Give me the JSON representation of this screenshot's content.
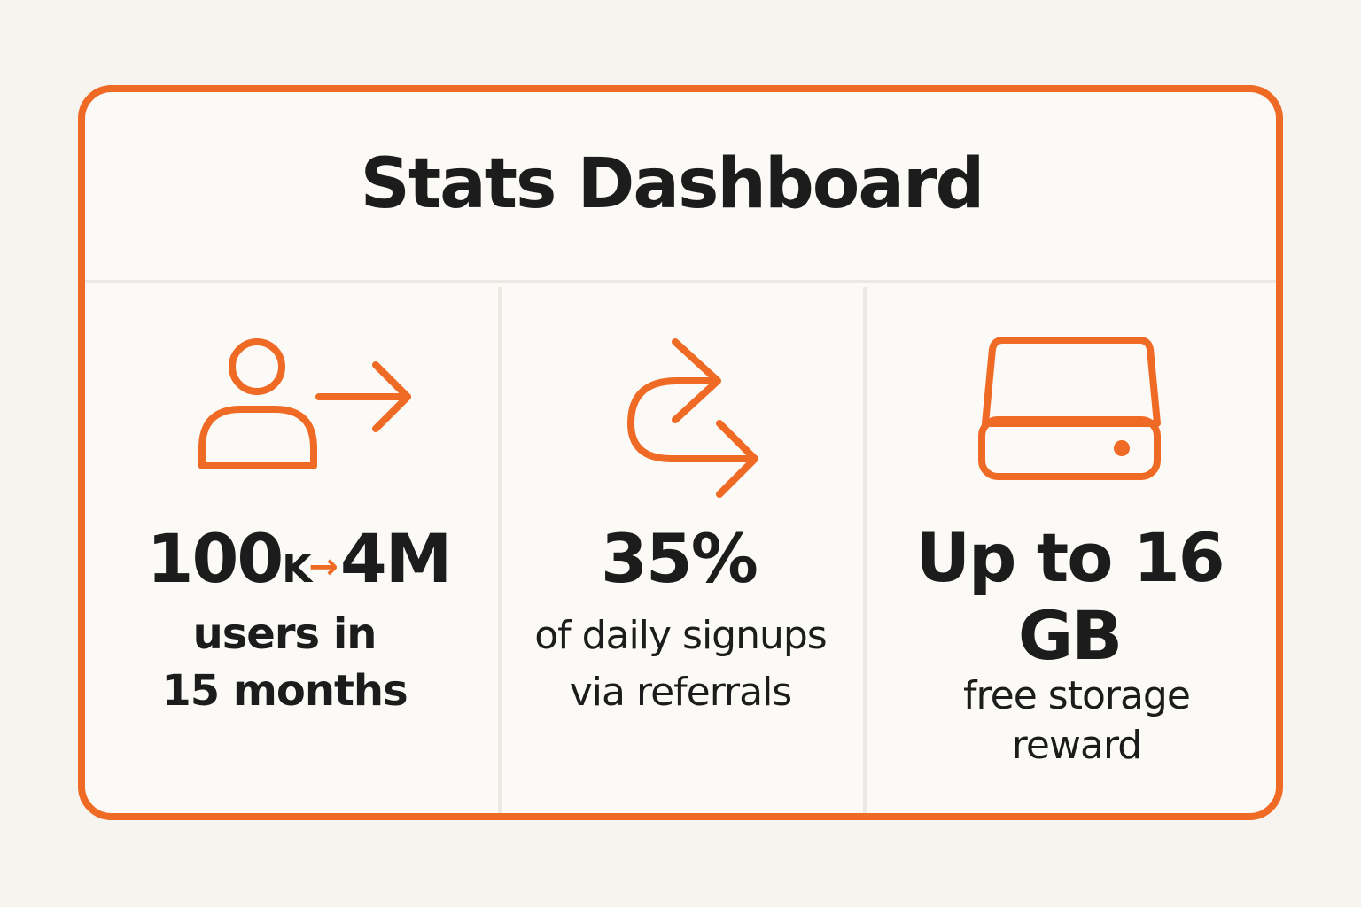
{
  "title": "Stats Dashboard",
  "accent_color": "#ef6a24",
  "stats": [
    {
      "icon": "user-arrow-icon",
      "value_start": "100",
      "value_unit": "K",
      "arrow": "→",
      "value_end": "4M",
      "description_line1": "users in",
      "description_line2": "15 months"
    },
    {
      "icon": "redirect-arrows-icon",
      "value": "35%",
      "description_line1": "of daily signups",
      "description_line2": "via referrals"
    },
    {
      "icon": "hard-drive-icon",
      "value_line1": "Up to 16",
      "value_line2": "GB",
      "description_line1": "free storage",
      "description_line2": "reward"
    }
  ]
}
